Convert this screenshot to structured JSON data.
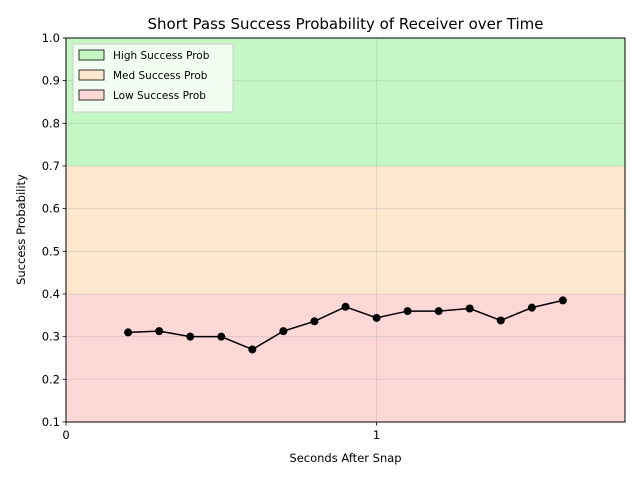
{
  "chart_data": {
    "type": "line",
    "title": "Short Pass Success Probability of Receiver over Time",
    "xlabel": "Seconds After Snap",
    "ylabel": "Success Probability",
    "xlim": [
      0,
      1.8
    ],
    "ylim": [
      0.1,
      1.0
    ],
    "xticks": [
      0,
      1
    ],
    "yticks": [
      0.1,
      0.2,
      0.3,
      0.4,
      0.5,
      0.6,
      0.7,
      0.8,
      0.9,
      1.0
    ],
    "grid": true,
    "legend_position": "top-left",
    "bands": [
      {
        "label": "High Success Prob",
        "from": 0.7,
        "to": 1.0,
        "color": "#c4f7c4"
      },
      {
        "label": "Med Success Prob",
        "from": 0.4,
        "to": 0.7,
        "color": "#fde8cd"
      },
      {
        "label": "Low Success Prob",
        "from": 0.1,
        "to": 0.4,
        "color": "#fed7d7"
      }
    ],
    "series": [
      {
        "color": "#000000",
        "x": [
          0.2,
          0.3,
          0.4,
          0.5,
          0.6,
          0.7,
          0.8,
          0.9,
          1.0,
          1.1,
          1.2,
          1.3,
          1.4,
          1.5,
          1.6
        ],
        "y": [
          0.31,
          0.313,
          0.3,
          0.3,
          0.27,
          0.313,
          0.336,
          0.37,
          0.344,
          0.36,
          0.36,
          0.366,
          0.338,
          0.368,
          0.385
        ]
      }
    ]
  }
}
